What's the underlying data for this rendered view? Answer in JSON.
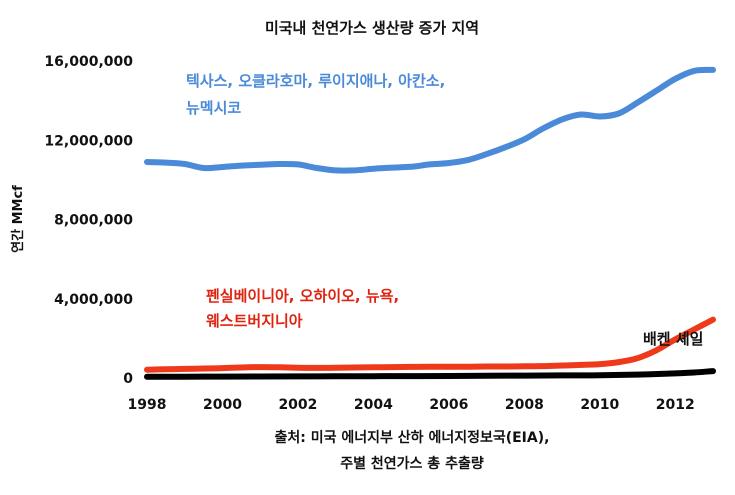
{
  "chart_data": {
    "type": "line",
    "title": "미국내 천연가스 생산량 증가 지역",
    "ylabel": "연간 MMcf",
    "xlabel": "",
    "xlim": [
      1998,
      2013
    ],
    "ylim": [
      0,
      16000000
    ],
    "x_ticks": [
      1998,
      2000,
      2002,
      2004,
      2006,
      2008,
      2010,
      2012
    ],
    "x_tick_labels": [
      "1998",
      "2000",
      "2002",
      "2004",
      "2006",
      "2008",
      "2010",
      "2012"
    ],
    "y_ticks": [
      0,
      4000000,
      8000000,
      12000000,
      16000000
    ],
    "y_tick_labels": [
      "0",
      "4,000,000",
      "8,000,000",
      "12,000,000",
      "16,000,000"
    ],
    "grid": false,
    "legend": "none",
    "series": [
      {
        "id": "texas",
        "color": "#4a8ad8",
        "label_lines": [
          "텍사스, 오클라호마, 루이지애나, 아칸소,",
          "뉴멕시코"
        ],
        "label_color": "#4a8ad8",
        "x": [
          1998,
          1998.5,
          1999,
          1999.5,
          2000,
          2000.5,
          2001,
          2001.5,
          2002,
          2002.5,
          2003,
          2003.5,
          2004,
          2004.5,
          2005,
          2005.5,
          2006,
          2006.5,
          2007,
          2007.5,
          2008,
          2008.5,
          2009,
          2009.5,
          2010,
          2010.5,
          2011,
          2011.5,
          2012,
          2012.5,
          2013
        ],
        "values": [
          10900000,
          10870000,
          10800000,
          10600000,
          10650000,
          10720000,
          10760000,
          10800000,
          10780000,
          10600000,
          10480000,
          10480000,
          10560000,
          10620000,
          10660000,
          10780000,
          10850000,
          11000000,
          11300000,
          11650000,
          12050000,
          12600000,
          13050000,
          13300000,
          13200000,
          13350000,
          13900000,
          14500000,
          15100000,
          15500000,
          15550000
        ]
      },
      {
        "id": "pennsylvania",
        "color": "#ee3a1a",
        "label_lines": [
          "펜실베이니아, 오하이오, 뉴욕,",
          "웨스트버지니아"
        ],
        "label_color": "#e0230f",
        "x": [
          1998,
          1998.5,
          1999,
          1999.5,
          2000,
          2000.5,
          2001,
          2001.5,
          2002,
          2002.5,
          2003,
          2003.5,
          2004,
          2004.5,
          2005,
          2005.5,
          2006,
          2006.5,
          2007,
          2007.5,
          2008,
          2008.5,
          2009,
          2009.5,
          2010,
          2010.5,
          2011,
          2011.5,
          2012,
          2012.5,
          2013
        ],
        "values": [
          420000,
          440000,
          460000,
          480000,
          500000,
          530000,
          550000,
          540000,
          520000,
          510000,
          520000,
          530000,
          540000,
          550000,
          560000,
          570000,
          570000,
          570000,
          580000,
          580000,
          590000,
          600000,
          630000,
          660000,
          700000,
          800000,
          1000000,
          1400000,
          1950000,
          2450000,
          2950000
        ]
      },
      {
        "id": "bakken",
        "color": "#000000",
        "label_lines": [
          "배켄 셰일"
        ],
        "label_color": "#111111",
        "x": [
          1998,
          1999,
          2000,
          2001,
          2002,
          2003,
          2004,
          2005,
          2006,
          2007,
          2008,
          2009,
          2010,
          2011,
          2012,
          2012.5,
          2013
        ],
        "values": [
          60000,
          65000,
          70000,
          75000,
          80000,
          85000,
          90000,
          95000,
          100000,
          110000,
          120000,
          130000,
          140000,
          170000,
          230000,
          280000,
          350000
        ]
      }
    ]
  },
  "source_lines": [
    "출처: 미국 에너지부 산하 에너지정보국(EIA),",
    "주별 천연가스 총 추출량"
  ]
}
